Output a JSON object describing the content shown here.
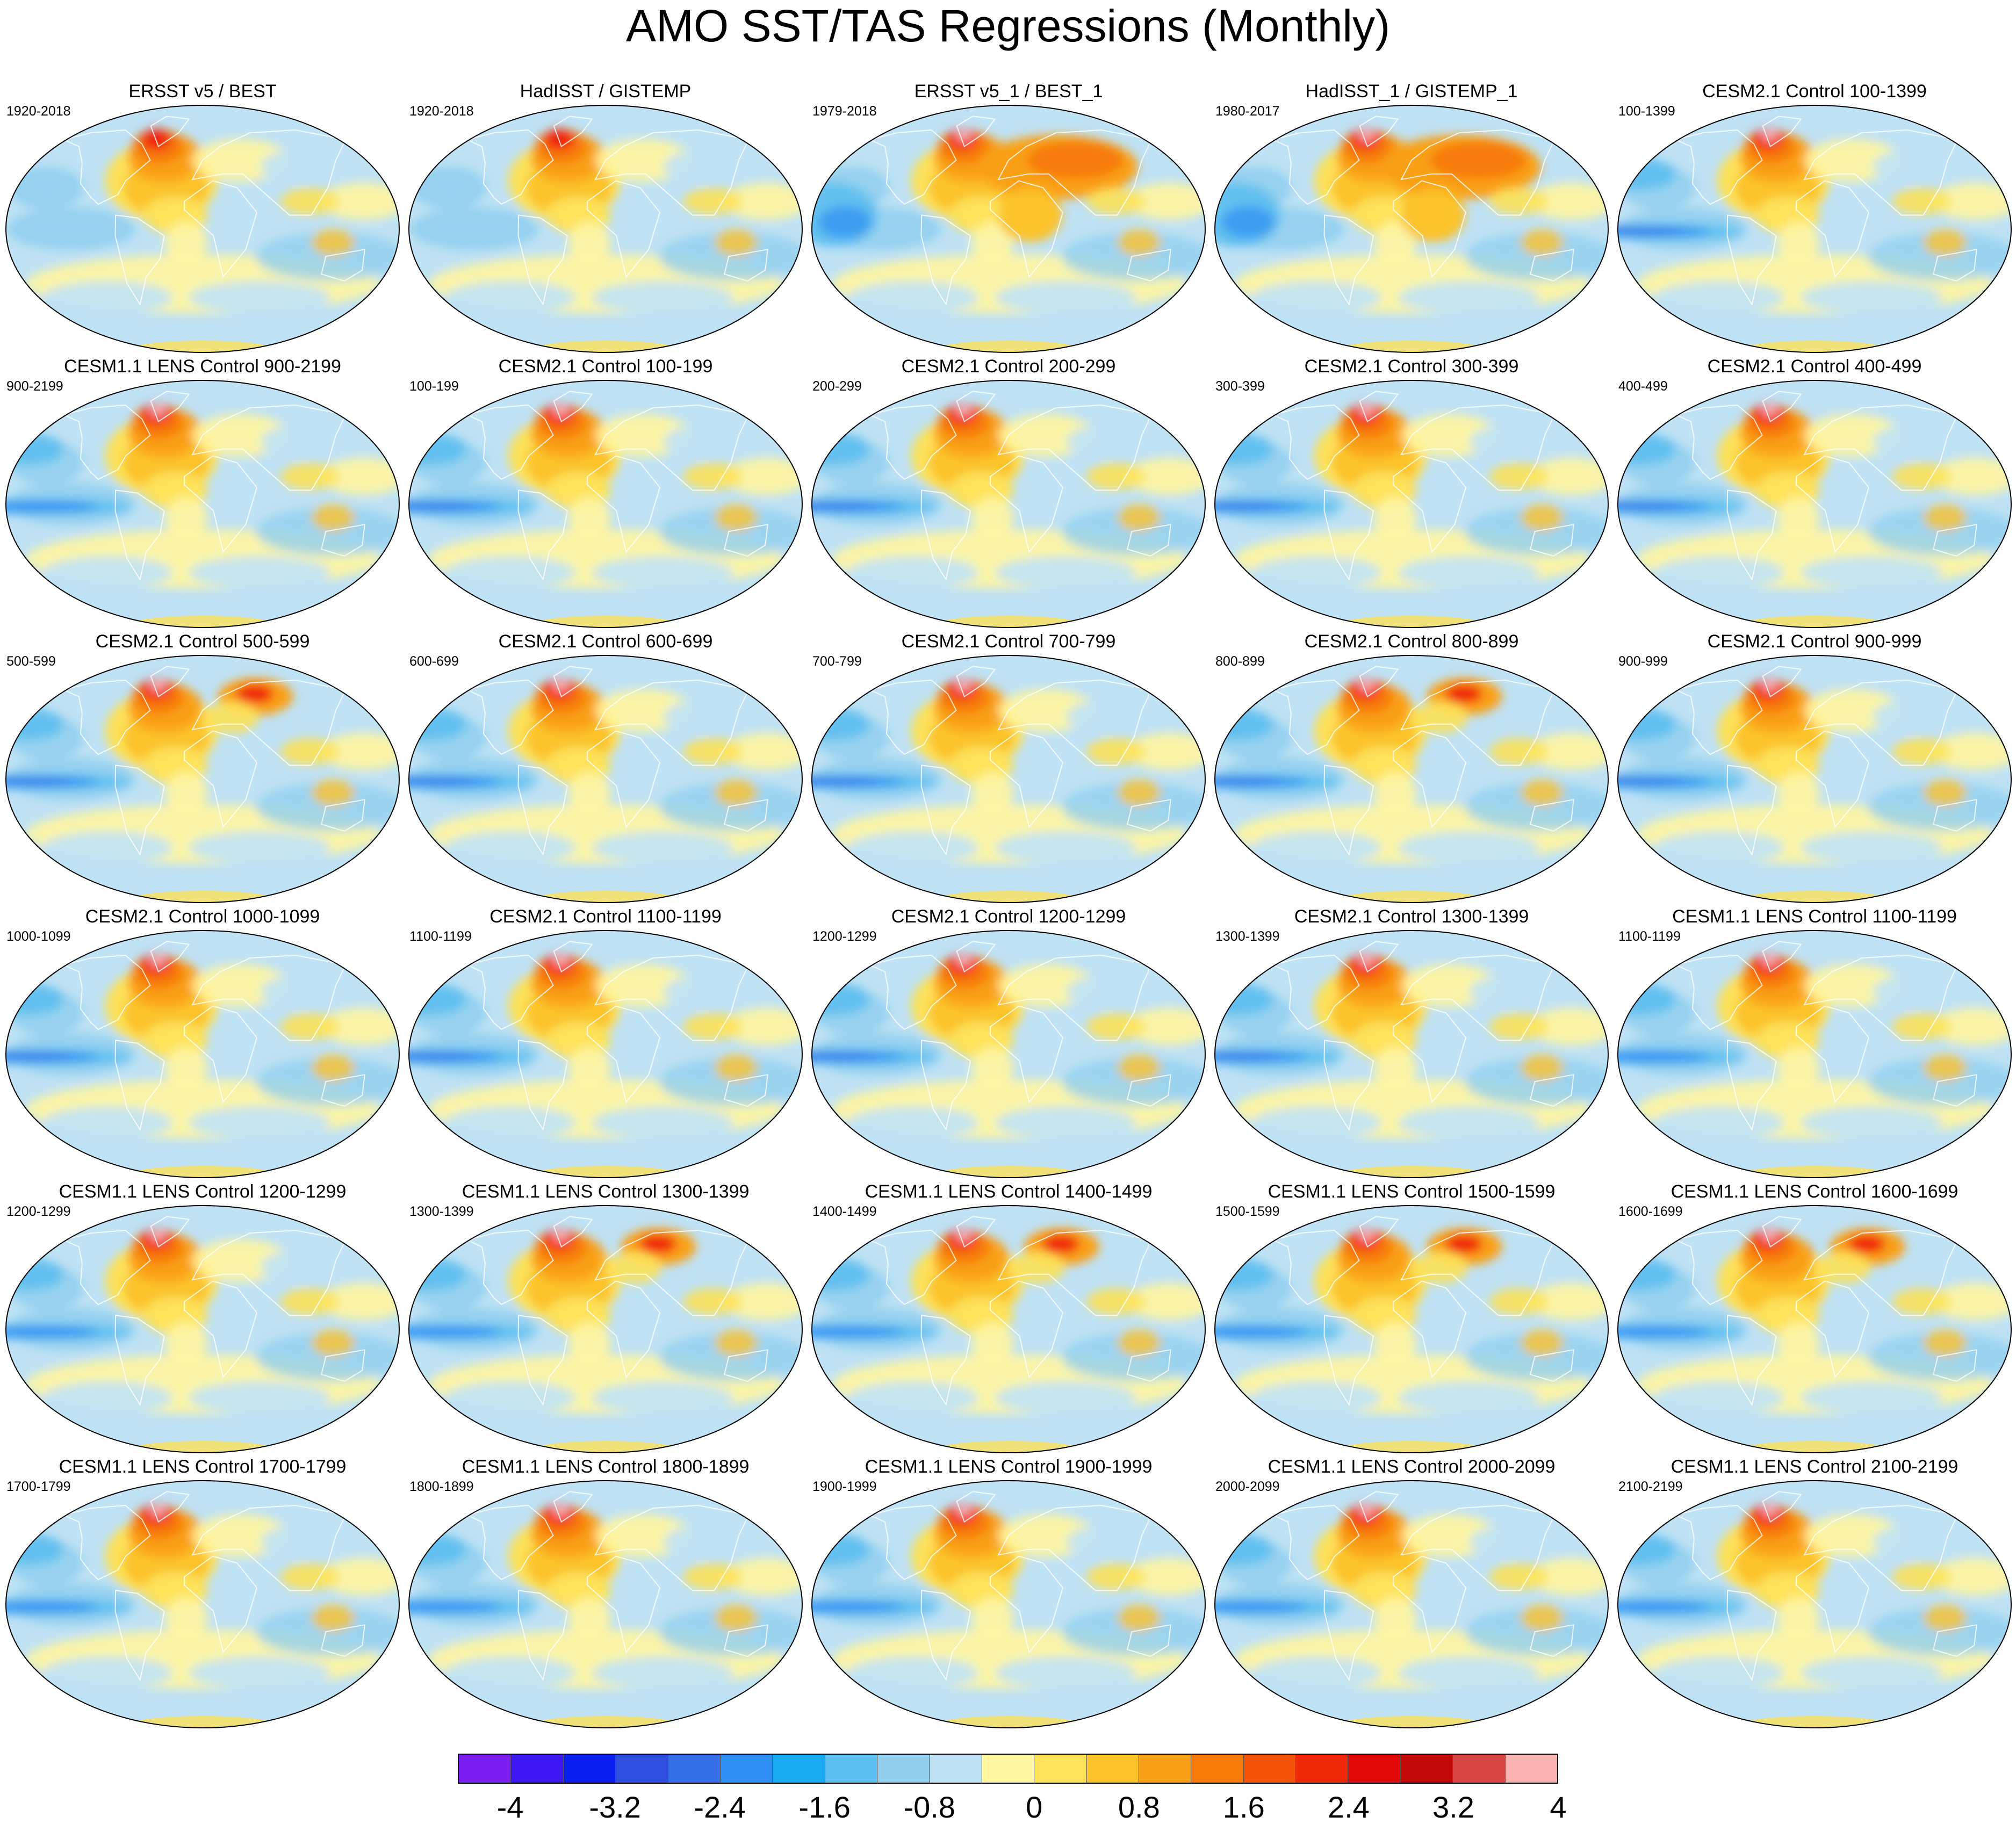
{
  "title": "AMO SST/TAS Regressions (Monthly)",
  "panels": [
    {
      "title": "ERSST v5 / BEST",
      "period": "1920-2018",
      "pattern": "obs"
    },
    {
      "title": "HadISST / GISTEMP",
      "period": "1920-2018",
      "pattern": "obs"
    },
    {
      "title": "ERSST v5_1 / BEST_1",
      "period": "1979-2018",
      "pattern": "obs_warm"
    },
    {
      "title": "HadISST_1 / GISTEMP_1",
      "period": "1980-2017",
      "pattern": "obs_warm"
    },
    {
      "title": "CESM2.1 Control 100-1399",
      "period": "100-1399",
      "pattern": "model"
    },
    {
      "title": "CESM1.1 LENS Control 900-2199",
      "period": "900-2199",
      "pattern": "lens"
    },
    {
      "title": "CESM2.1 Control 100-199",
      "period": "100-199",
      "pattern": "model"
    },
    {
      "title": "CESM2.1 Control 200-299",
      "period": "200-299",
      "pattern": "model"
    },
    {
      "title": "CESM2.1 Control 300-399",
      "period": "300-399",
      "pattern": "model"
    },
    {
      "title": "CESM2.1 Control 400-499",
      "period": "400-499",
      "pattern": "model"
    },
    {
      "title": "CESM2.1 Control 500-599",
      "period": "500-599",
      "pattern": "model_eurasia"
    },
    {
      "title": "CESM2.1 Control 600-699",
      "period": "600-699",
      "pattern": "model"
    },
    {
      "title": "CESM2.1 Control 700-799",
      "period": "700-799",
      "pattern": "model"
    },
    {
      "title": "CESM2.1 Control 800-899",
      "period": "800-899",
      "pattern": "model_eurasia"
    },
    {
      "title": "CESM2.1 Control 900-999",
      "period": "900-999",
      "pattern": "model"
    },
    {
      "title": "CESM2.1 Control 1000-1099",
      "period": "1000-1099",
      "pattern": "model"
    },
    {
      "title": "CESM2.1 Control 1100-1199",
      "period": "1100-1199",
      "pattern": "model"
    },
    {
      "title": "CESM2.1 Control 1200-1299",
      "period": "1200-1299",
      "pattern": "model"
    },
    {
      "title": "CESM2.1 Control 1300-1399",
      "period": "1300-1399",
      "pattern": "model"
    },
    {
      "title": "CESM1.1 LENS Control 1100-1199",
      "period": "1100-1199",
      "pattern": "lens"
    },
    {
      "title": "CESM1.1 LENS Control 1200-1299",
      "period": "1200-1299",
      "pattern": "lens"
    },
    {
      "title": "CESM1.1 LENS Control 1300-1399",
      "period": "1300-1399",
      "pattern": "lens_eurasia"
    },
    {
      "title": "CESM1.1 LENS Control 1400-1499",
      "period": "1400-1499",
      "pattern": "lens_eurasia"
    },
    {
      "title": "CESM1.1 LENS Control 1500-1599",
      "period": "1500-1599",
      "pattern": "lens_eurasia"
    },
    {
      "title": "CESM1.1 LENS Control 1600-1699",
      "period": "1600-1699",
      "pattern": "lens_eurasia"
    },
    {
      "title": "CESM1.1 LENS Control 1700-1799",
      "period": "1700-1799",
      "pattern": "lens"
    },
    {
      "title": "CESM1.1 LENS Control 1800-1899",
      "period": "1800-1899",
      "pattern": "lens"
    },
    {
      "title": "CESM1.1 LENS Control 1900-1999",
      "period": "1900-1999",
      "pattern": "lens"
    },
    {
      "title": "CESM1.1 LENS Control 2000-2099",
      "period": "2000-2099",
      "pattern": "lens"
    },
    {
      "title": "CESM1.1 LENS Control 2100-2199",
      "period": "2100-2199",
      "pattern": "lens"
    }
  ],
  "colorbar": {
    "colors": [
      "#7a1ff0",
      "#3c17f2",
      "#0a1ff0",
      "#2e4fe0",
      "#3670e8",
      "#2f8ff2",
      "#19aaf0",
      "#5dbff0",
      "#92cfee",
      "#bfe2f5",
      "#fff5a0",
      "#fde25a",
      "#fbc229",
      "#f9a019",
      "#f77a0a",
      "#f5520a",
      "#f0280a",
      "#e10a0a",
      "#c00a0a",
      "#d94545",
      "#f8b2b2"
    ],
    "labels": [
      "-4",
      "-3.2",
      "-2.4",
      "-1.6",
      "-0.8",
      "0",
      "0.8",
      "1.6",
      "2.4",
      "3.2",
      "4"
    ]
  }
}
